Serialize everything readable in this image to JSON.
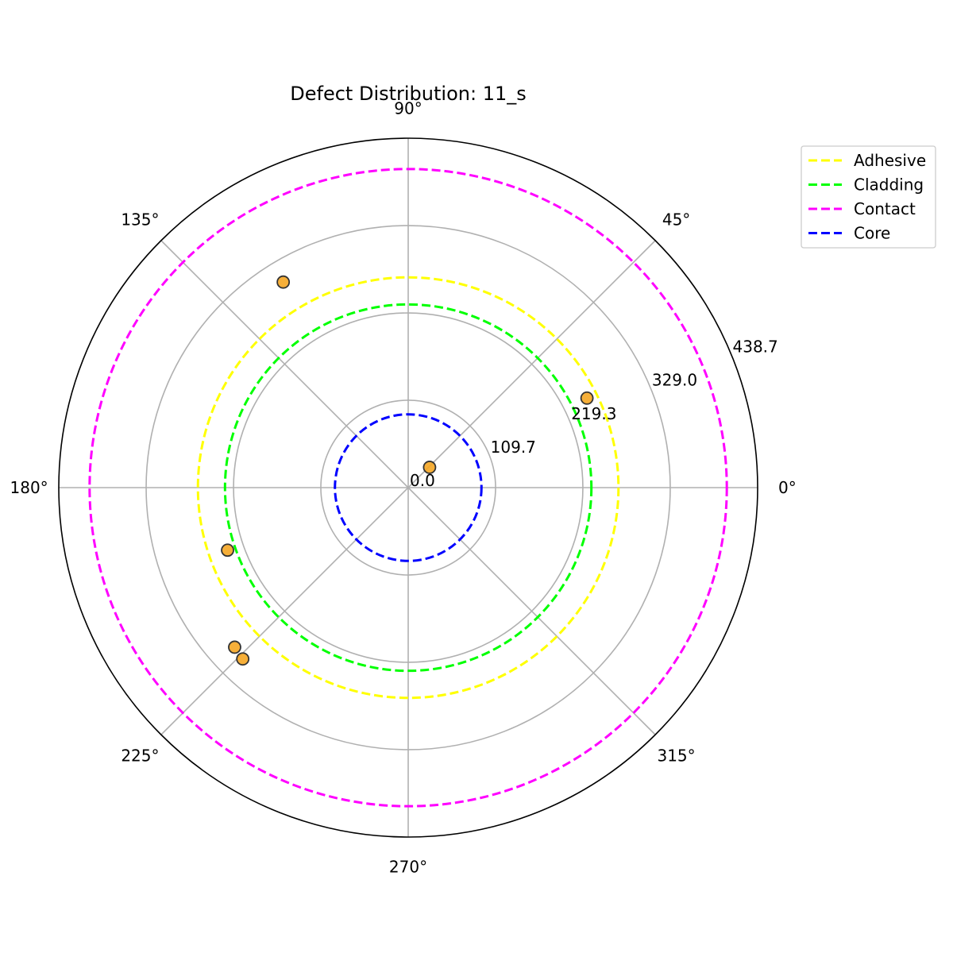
{
  "chart_data": {
    "type": "scatter",
    "projection": "polar",
    "title": "Defect Distribution: 11_s",
    "angle_unit": "degrees",
    "theta_ticks": [
      0,
      45,
      90,
      135,
      180,
      225,
      270,
      315
    ],
    "theta_tick_labels": [
      "0°",
      "45°",
      "90°",
      "135°",
      "180°",
      "225°",
      "270°",
      "315°"
    ],
    "r_range": [
      0,
      438.7
    ],
    "r_ticks": [
      0.0,
      109.7,
      219.3,
      329.0,
      438.7
    ],
    "r_tick_labels": [
      "0.0",
      "109.7",
      "219.3",
      "329.0",
      "438.7"
    ],
    "grid": true,
    "legend_position": "upper-right-outside",
    "boundaries": [
      {
        "name": "Adhesive",
        "radius": 264,
        "color": "#ffff00",
        "style": "dashed"
      },
      {
        "name": "Cladding",
        "radius": 230,
        "color": "#00ff00",
        "style": "dashed"
      },
      {
        "name": "Contact",
        "radius": 400,
        "color": "#ff00ff",
        "style": "dashed"
      },
      {
        "name": "Core",
        "radius": 92,
        "color": "#0000ff",
        "style": "dashed"
      }
    ],
    "defects": {
      "color": "#f5a623",
      "edge_color": "#333333",
      "points": [
        {
          "theta": 43.5,
          "r": 37
        },
        {
          "theta": 26.6,
          "r": 251
        },
        {
          "theta": 121.3,
          "r": 302
        },
        {
          "theta": 199.1,
          "r": 240
        },
        {
          "theta": 222.6,
          "r": 296
        },
        {
          "theta": 226.0,
          "r": 299
        }
      ]
    }
  }
}
